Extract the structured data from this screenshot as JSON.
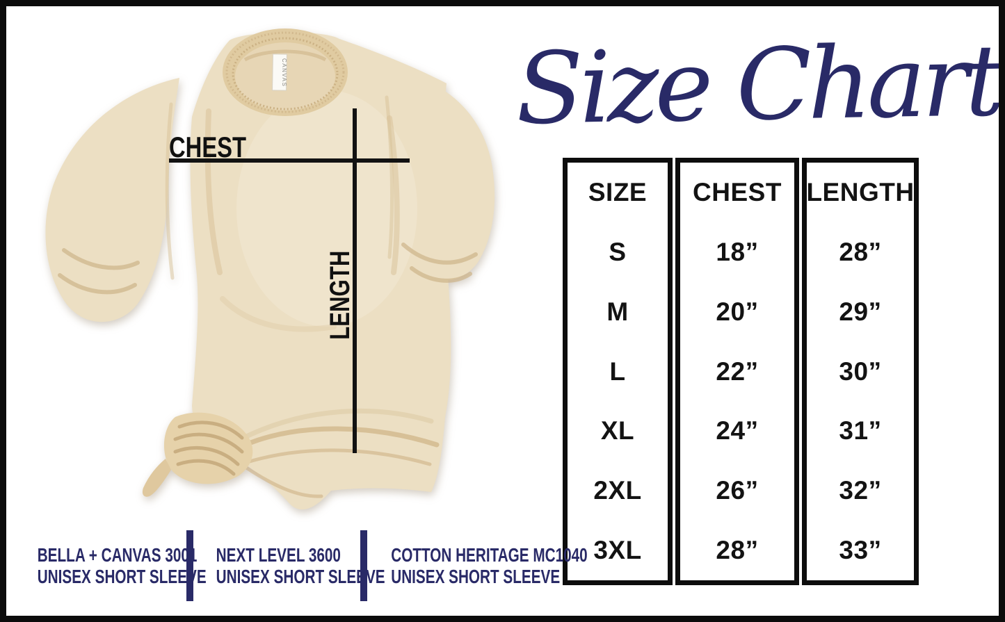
{
  "header": {
    "title": "Size Chart"
  },
  "shirt_diagram": {
    "chest_label": "CHEST",
    "length_label": "LENGTH",
    "tag_text": "CANVAS"
  },
  "size_table": {
    "columns": [
      {
        "key": "size",
        "label": "SIZE"
      },
      {
        "key": "chest",
        "label": "CHEST"
      },
      {
        "key": "length",
        "label": "LENGTH"
      }
    ],
    "rows": [
      {
        "size": "S",
        "chest": "18”",
        "length": "28”"
      },
      {
        "size": "M",
        "chest": "20”",
        "length": "29”"
      },
      {
        "size": "L",
        "chest": "22”",
        "length": "30”"
      },
      {
        "size": "XL",
        "chest": "24”",
        "length": "31”"
      },
      {
        "size": "2XL",
        "chest": "26”",
        "length": "32”"
      },
      {
        "size": "3XL",
        "chest": "28”",
        "length": "33”"
      }
    ]
  },
  "footer": {
    "brands": [
      {
        "line1": "BELLA + CANVAS 3001",
        "line2": "UNISEX SHORT SLEEVE"
      },
      {
        "line1": "NEXT LEVEL 3600",
        "line2": "UNISEX SHORT SLEEVE"
      },
      {
        "line1": "COTTON HERITAGE MC1040",
        "line2": "UNISEX SHORT SLEEVE"
      }
    ]
  },
  "colors": {
    "accent_navy": "#292a67",
    "line_black": "#121212",
    "frame_black": "#0c0c0c",
    "shirt_cream": "#ecdfc3"
  },
  "chart_data": {
    "type": "table",
    "title": "Size Chart",
    "columns": [
      "SIZE",
      "CHEST",
      "LENGTH"
    ],
    "rows": [
      [
        "S",
        "18”",
        "28”"
      ],
      [
        "M",
        "20”",
        "29”"
      ],
      [
        "L",
        "22”",
        "30”"
      ],
      [
        "XL",
        "24”",
        "31”"
      ],
      [
        "2XL",
        "26”",
        "32”"
      ],
      [
        "3XL",
        "28”",
        "33”"
      ]
    ],
    "units": "inches"
  }
}
